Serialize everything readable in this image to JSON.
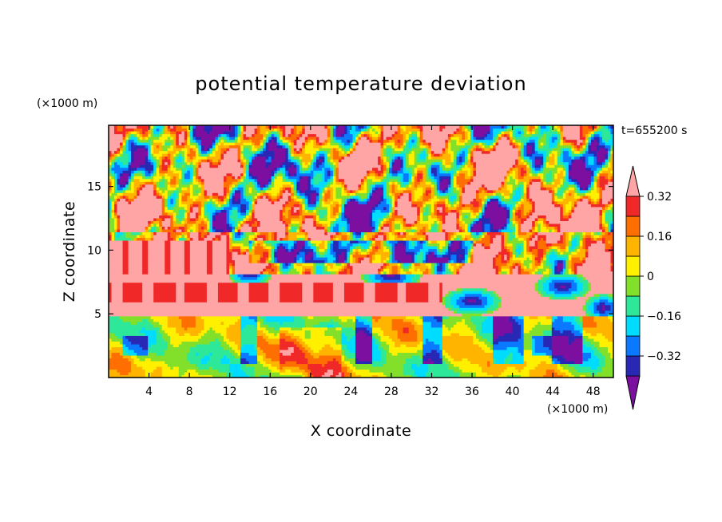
{
  "chart_data": {
    "type": "heatmap",
    "title": "potential temperature deviation",
    "xlabel": "X coordinate",
    "ylabel": "Z coordinate",
    "x_unit": "(×1000 m)",
    "y_unit": "(×1000 m)",
    "time_label": "t=655200 s",
    "xlim": [
      0,
      50
    ],
    "ylim": [
      0,
      19.8
    ],
    "x_ticks": [
      4,
      8,
      12,
      16,
      20,
      24,
      28,
      32,
      36,
      40,
      44,
      48
    ],
    "y_ticks": [
      5,
      10,
      15
    ],
    "colorbar": {
      "levels": [
        -0.4,
        -0.32,
        -0.24,
        -0.16,
        -0.08,
        0,
        0.08,
        0.16,
        0.24,
        0.32,
        0.4
      ],
      "labels": [
        "-0.32",
        "-0.16",
        "0",
        "0.16",
        "0.32"
      ],
      "label_values": [
        -0.32,
        -0.16,
        0,
        0.16,
        0.32
      ],
      "colors": [
        "#7d0fa0",
        "#2828b4",
        "#0a78ff",
        "#00dcff",
        "#2ee89a",
        "#82e02a",
        "#fff000",
        "#ffb400",
        "#ff6e00",
        "#f02828",
        "#ffa5a5"
      ],
      "extend": "both"
    },
    "field_description": "potential temperature deviation field over X-Z domain"
  }
}
